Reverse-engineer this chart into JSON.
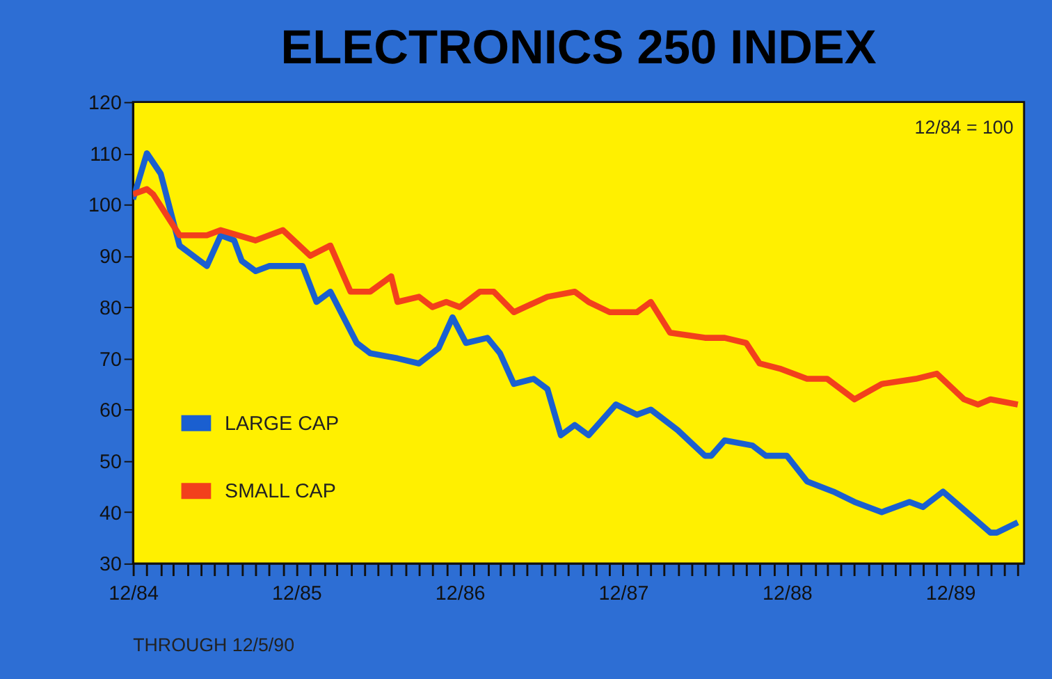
{
  "chart_data": {
    "type": "line",
    "title": "ELECTRONICS 250 INDEX",
    "annotations": [
      "12/84 = 100",
      "THROUGH 12/5/90"
    ],
    "series": [
      {
        "name": "LARGE CAP",
        "color": "#1a5fd0",
        "x": [
          "1984-12-01",
          "1985-01-01",
          "1985-02-01",
          "1985-03-15",
          "1985-05-15",
          "1985-06-15",
          "1985-07-15",
          "1985-08-01",
          "1985-09-01",
          "1985-10-01",
          "1985-12-15",
          "1986-01-15",
          "1986-02-15",
          "1986-04-15",
          "1986-05-15",
          "1986-07-15",
          "1986-09-01",
          "1986-10-15",
          "1986-11-15",
          "1986-12-15",
          "1987-02-01",
          "1987-03-01",
          "1987-04-01",
          "1987-05-15",
          "1987-06-15",
          "1987-07-15",
          "1987-08-15",
          "1987-09-15",
          "1987-11-15",
          "1988-01-01",
          "1988-02-01",
          "1988-04-01",
          "1988-06-01",
          "1988-06-15",
          "1988-07-15",
          "1988-09-15",
          "1988-10-15",
          "1988-12-01",
          "1989-01-15",
          "1989-03-15",
          "1989-05-01",
          "1989-07-01",
          "1989-09-01",
          "1989-10-01",
          "1989-11-15",
          "1990-03-01",
          "1990-03-15",
          "1990-05-01"
        ],
        "values": [
          101,
          110,
          106,
          92,
          88,
          94,
          93,
          89,
          87,
          88,
          88,
          81,
          83,
          73,
          71,
          70,
          69,
          72,
          78,
          73,
          74,
          71,
          65,
          66,
          64,
          55,
          57,
          55,
          61,
          59,
          60,
          56,
          51,
          51,
          54,
          53,
          51,
          51,
          46,
          44,
          42,
          40,
          42,
          41,
          44,
          36,
          36,
          38
        ]
      },
      {
        "name": "SMALL CAP",
        "color": "#f2401c",
        "x": [
          "1984-12-01",
          "1985-01-01",
          "1985-01-15",
          "1985-03-15",
          "1985-05-15",
          "1985-06-15",
          "1985-09-01",
          "1985-11-01",
          "1986-01-01",
          "1986-02-15",
          "1986-04-01",
          "1986-05-15",
          "1986-07-01",
          "1986-07-15",
          "1986-09-01",
          "1986-10-01",
          "1986-11-01",
          "1986-12-01",
          "1987-01-15",
          "1987-02-15",
          "1987-04-01",
          "1987-06-15",
          "1987-08-15",
          "1987-09-15",
          "1987-11-01",
          "1988-01-01",
          "1988-02-01",
          "1988-03-15",
          "1988-06-01",
          "1988-07-15",
          "1988-09-01",
          "1988-10-01",
          "1988-11-15",
          "1989-01-15",
          "1989-03-01",
          "1989-05-01",
          "1989-07-01",
          "1989-09-15",
          "1989-11-01",
          "1990-01-01",
          "1990-02-01",
          "1990-03-01",
          "1990-05-01"
        ],
        "values": [
          102,
          103,
          102,
          94,
          94,
          95,
          93,
          95,
          90,
          92,
          83,
          83,
          86,
          81,
          82,
          80,
          81,
          80,
          83,
          83,
          79,
          82,
          83,
          81,
          79,
          79,
          81,
          75,
          74,
          74,
          73,
          69,
          68,
          66,
          66,
          62,
          65,
          66,
          67,
          62,
          61,
          62,
          61
        ]
      }
    ],
    "xlim": [
      "1984-12-01",
      "1990-05-15"
    ],
    "xticks": [
      {
        "value": "1984-12",
        "label": "12/84"
      },
      {
        "value": "1985-01",
        "label": null
      },
      {
        "value": "1985-02",
        "label": null
      },
      {
        "value": "1985-03",
        "label": null
      },
      {
        "value": "1985-04",
        "label": null
      },
      {
        "value": "1985-05",
        "label": null
      },
      {
        "value": "1985-06",
        "label": null
      },
      {
        "value": "1985-07",
        "label": null
      },
      {
        "value": "1985-08",
        "label": null
      },
      {
        "value": "1985-09",
        "label": null
      },
      {
        "value": "1985-10",
        "label": null
      },
      {
        "value": "1985-11",
        "label": null
      },
      {
        "value": "1985-12",
        "label": "12/85"
      },
      {
        "value": "1986-01",
        "label": null
      },
      {
        "value": "1986-02",
        "label": null
      },
      {
        "value": "1986-03",
        "label": null
      },
      {
        "value": "1986-04",
        "label": null
      },
      {
        "value": "1986-05",
        "label": null
      },
      {
        "value": "1986-06",
        "label": null
      },
      {
        "value": "1986-07",
        "label": null
      },
      {
        "value": "1986-08",
        "label": null
      },
      {
        "value": "1986-09",
        "label": null
      },
      {
        "value": "1986-10",
        "label": null
      },
      {
        "value": "1986-11",
        "label": null
      },
      {
        "value": "1986-12",
        "label": "12/86"
      },
      {
        "value": "1987-01",
        "label": null
      },
      {
        "value": "1987-02",
        "label": null
      },
      {
        "value": "1987-03",
        "label": null
      },
      {
        "value": "1987-04",
        "label": null
      },
      {
        "value": "1987-05",
        "label": null
      },
      {
        "value": "1987-06",
        "label": null
      },
      {
        "value": "1987-07",
        "label": null
      },
      {
        "value": "1987-08",
        "label": null
      },
      {
        "value": "1987-09",
        "label": null
      },
      {
        "value": "1987-10",
        "label": null
      },
      {
        "value": "1987-11",
        "label": null
      },
      {
        "value": "1987-12",
        "label": "12/87"
      },
      {
        "value": "1988-01",
        "label": null
      },
      {
        "value": "1988-02",
        "label": null
      },
      {
        "value": "1988-03",
        "label": null
      },
      {
        "value": "1988-04",
        "label": null
      },
      {
        "value": "1988-05",
        "label": null
      },
      {
        "value": "1988-06",
        "label": null
      },
      {
        "value": "1988-07",
        "label": null
      },
      {
        "value": "1988-08",
        "label": null
      },
      {
        "value": "1988-09",
        "label": null
      },
      {
        "value": "1988-10",
        "label": null
      },
      {
        "value": "1988-11",
        "label": null
      },
      {
        "value": "1988-12",
        "label": "12/88"
      },
      {
        "value": "1989-01",
        "label": null
      },
      {
        "value": "1989-02",
        "label": null
      },
      {
        "value": "1989-03",
        "label": null
      },
      {
        "value": "1989-04",
        "label": null
      },
      {
        "value": "1989-05",
        "label": null
      },
      {
        "value": "1989-06",
        "label": null
      },
      {
        "value": "1989-07",
        "label": null
      },
      {
        "value": "1989-08",
        "label": null
      },
      {
        "value": "1989-09",
        "label": null
      },
      {
        "value": "1989-10",
        "label": null
      },
      {
        "value": "1989-11",
        "label": null
      },
      {
        "value": "1989-12",
        "label": "12/89"
      },
      {
        "value": "1990-01",
        "label": null
      },
      {
        "value": "1990-02",
        "label": null
      },
      {
        "value": "1990-03",
        "label": null
      },
      {
        "value": "1990-04",
        "label": null
      },
      {
        "value": "1990-05",
        "label": null
      }
    ],
    "ylim": [
      30,
      120
    ],
    "yticks": [
      30,
      40,
      50,
      60,
      70,
      80,
      90,
      100,
      110,
      120
    ],
    "legend": "bottom left"
  }
}
